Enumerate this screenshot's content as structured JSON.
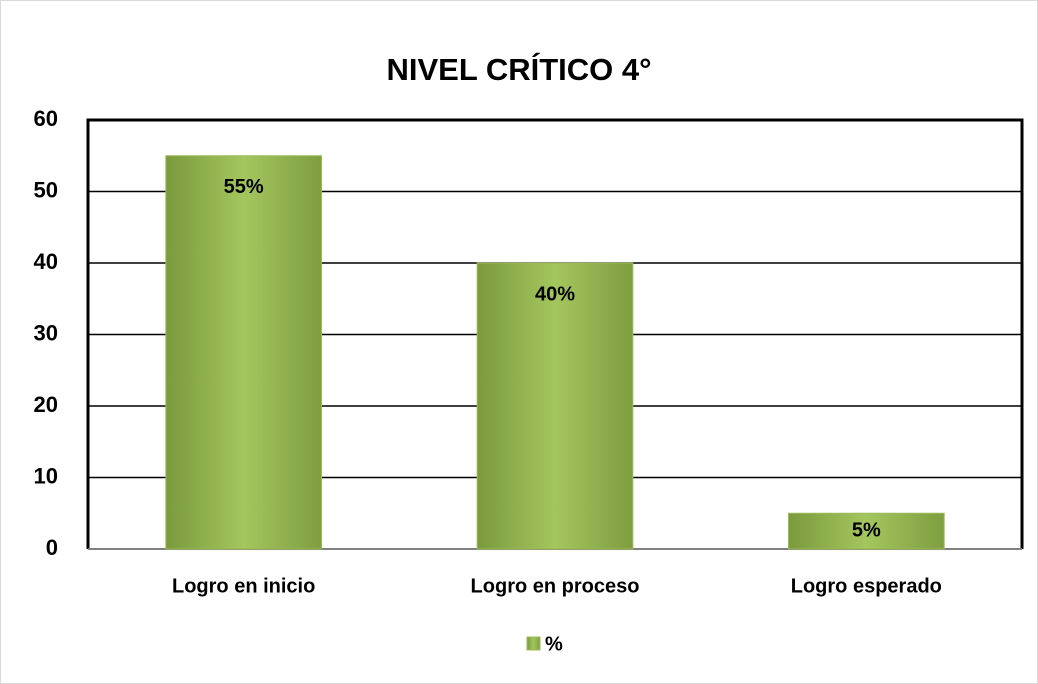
{
  "chart_data": {
    "type": "bar",
    "title": "NIVEL CRÍTICO 4°",
    "categories": [
      "Logro en inicio",
      "Logro en proceso",
      "Logro esperado"
    ],
    "series": [
      {
        "name": "%",
        "color": "#9bbb59",
        "values": [
          55,
          40,
          5
        ],
        "value_labels": [
          "55%",
          "40%",
          "5%"
        ]
      }
    ],
    "ylim": [
      0,
      60
    ],
    "yticks": [
      0,
      10,
      20,
      30,
      40,
      50,
      60
    ],
    "grid": true,
    "legend": "bottom"
  }
}
